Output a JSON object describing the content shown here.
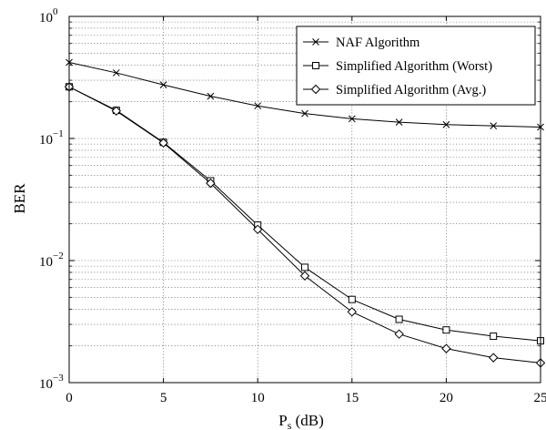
{
  "chart_data": {
    "type": "line",
    "xlabel": "P",
    "xlabel_sub": "s",
    "xlabel_unit": " (dB)",
    "ylabel": "BER",
    "xlim": [
      0,
      25
    ],
    "ylim": [
      0.001,
      1
    ],
    "yscale": "log",
    "grid": true,
    "legend_position": "top-right",
    "x_ticks": [
      "0",
      "5",
      "10",
      "15",
      "20",
      "25"
    ],
    "y_ticks": [
      {
        "base": "10",
        "exp": "0"
      },
      {
        "base": "10",
        "exp": "−1"
      },
      {
        "base": "10",
        "exp": "−2"
      },
      {
        "base": "10",
        "exp": "−3"
      }
    ],
    "x": [
      0,
      2.5,
      5,
      7.5,
      10,
      12.5,
      15,
      17.5,
      20,
      22.5,
      25
    ],
    "series": [
      {
        "name": "NAF Algorithm",
        "marker": "x",
        "values": [
          0.42,
          0.345,
          0.275,
          0.222,
          0.185,
          0.16,
          0.145,
          0.136,
          0.13,
          0.127,
          0.124
        ]
      },
      {
        "name": "Simplified Algorithm (Worst)",
        "marker": "square",
        "values": [
          0.265,
          0.17,
          0.093,
          0.045,
          0.0195,
          0.0088,
          0.0048,
          0.0033,
          0.0027,
          0.0024,
          0.0022
        ]
      },
      {
        "name": "Simplified Algorithm (Avg.)",
        "marker": "diamond",
        "values": [
          0.265,
          0.168,
          0.092,
          0.043,
          0.018,
          0.0075,
          0.0038,
          0.0025,
          0.0019,
          0.0016,
          0.00145
        ]
      }
    ]
  }
}
